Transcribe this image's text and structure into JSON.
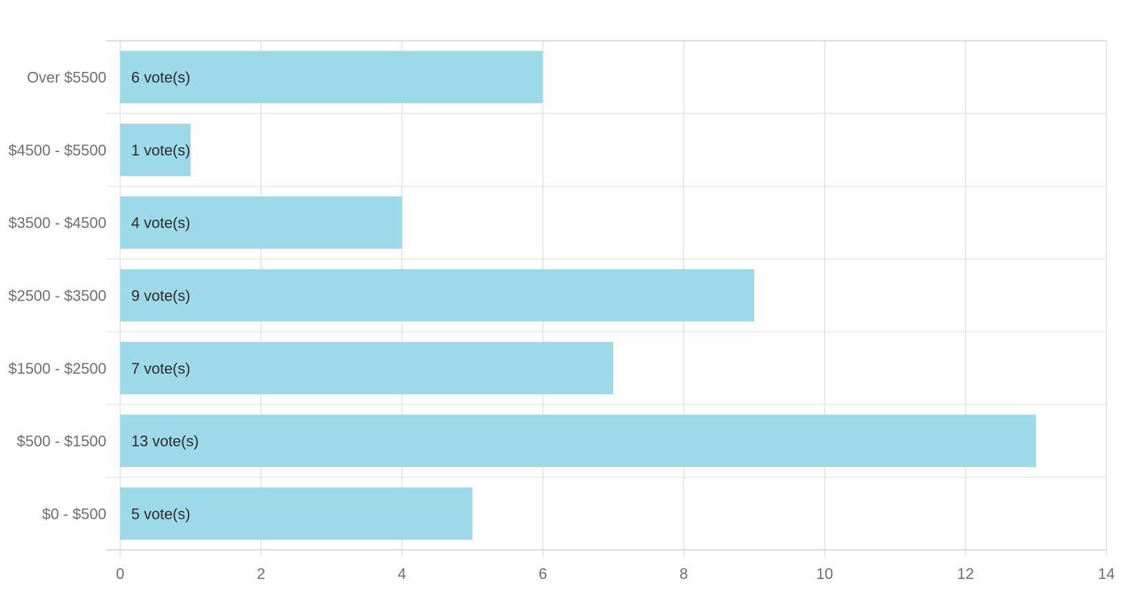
{
  "chart_data": {
    "type": "bar",
    "orientation": "horizontal",
    "title": "",
    "xlabel": "",
    "ylabel": "",
    "categories": [
      "Over $5500",
      "$4500 - $5500",
      "$3500 - $4500",
      "$2500 - $3500",
      "$1500 - $2500",
      "$500 - $1500",
      "$0 - $500"
    ],
    "values": [
      6,
      1,
      4,
      9,
      7,
      13,
      5
    ],
    "value_labels": [
      "6 vote(s)",
      "1 vote(s)",
      "4 vote(s)",
      "9 vote(s)",
      "7 vote(s)",
      "13 vote(s)",
      "5 vote(s)"
    ],
    "xlim": [
      0,
      14
    ],
    "x_ticks": [
      0,
      2,
      4,
      6,
      8,
      10,
      12,
      14
    ],
    "grid": true,
    "legend": "none",
    "bar_color": "#9dd9e9"
  }
}
